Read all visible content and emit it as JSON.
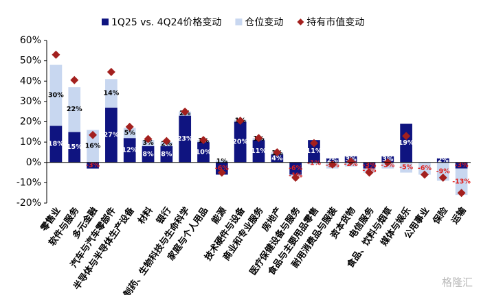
{
  "chart_data": {
    "type": "bar",
    "stacked": true,
    "categories": [
      "零售业",
      "软件与服务",
      "多元金融",
      "汽车与汽车零部件",
      "半导体与半导体生产设备",
      "材料",
      "银行",
      "制药、生物科技与生命科学",
      "家庭与个人用品",
      "能源",
      "技术硬件与设备",
      "商业和专业服务",
      "房地产",
      "医疗保健设备与服务",
      "食品与主要用品零售",
      "耐用消费品与服装",
      "资本货物",
      "电信服务",
      "食品、饮料与烟草",
      "媒体与娱乐",
      "公用事业",
      "保险",
      "运输"
    ],
    "series": [
      {
        "name": "1Q25 vs. 4Q24价格变动",
        "type": "bar",
        "color": "#0f1480",
        "values": [
          18,
          15,
          -3,
          27,
          12,
          8,
          8,
          23,
          10,
          -6,
          20,
          11,
          4,
          -6,
          11,
          2,
          3,
          -3,
          3,
          19,
          0,
          2,
          -3
        ],
        "value_labels": [
          "18%",
          "15%",
          "-3%",
          "27%",
          "12%",
          "8%",
          "8%",
          "23%",
          "10%",
          "-6%",
          "20%",
          "11%",
          "4%",
          "-6%",
          "11%",
          "2%",
          "3%",
          "-3%",
          "3%",
          "19%",
          "0%",
          "2%",
          "-3%"
        ]
      },
      {
        "name": "仓位变动",
        "type": "bar",
        "color": "#c8d7f0",
        "values": [
          30,
          22,
          16,
          14,
          5,
          3,
          2,
          2,
          1,
          1,
          1,
          1,
          1,
          -1,
          -1,
          -3,
          -2,
          -2,
          -3,
          -5,
          -6,
          -9,
          -13
        ],
        "value_labels": [
          "30%",
          "22%",
          "16%",
          "14%",
          "5%",
          "3%",
          "2%",
          "2%",
          "1%",
          "1%",
          "1%",
          "1%",
          "1%",
          "-1%",
          "-1%",
          "-3%",
          "-2%",
          "-2%",
          "-3%",
          "-5%",
          "-6%",
          "-9%",
          "-13%"
        ]
      },
      {
        "name": "持有市值变动",
        "type": "scatter",
        "marker": "diamond",
        "color": "#a3201e",
        "values": [
          53,
          40.5,
          13.5,
          44.5,
          17.5,
          11.5,
          10.5,
          25,
          11,
          -5,
          20.5,
          12,
          5,
          -7.5,
          9.5,
          -1,
          0.5,
          -5,
          0,
          13,
          -6,
          -7.5,
          -15
        ]
      }
    ],
    "ylim": [
      -20,
      60
    ],
    "yticks": [
      {
        "value": -20,
        "label": "-20%"
      },
      {
        "value": -10,
        "label": "-10%"
      },
      {
        "value": 0,
        "label": "0%"
      },
      {
        "value": 10,
        "label": "10%"
      },
      {
        "value": 20,
        "label": "20%"
      },
      {
        "value": 30,
        "label": "30%"
      },
      {
        "value": 40,
        "label": "40%"
      },
      {
        "value": 50,
        "label": "50%"
      },
      {
        "value": 60,
        "label": "60%"
      }
    ],
    "negative_label_color": "#e0201c",
    "watermark": "格隆汇"
  }
}
